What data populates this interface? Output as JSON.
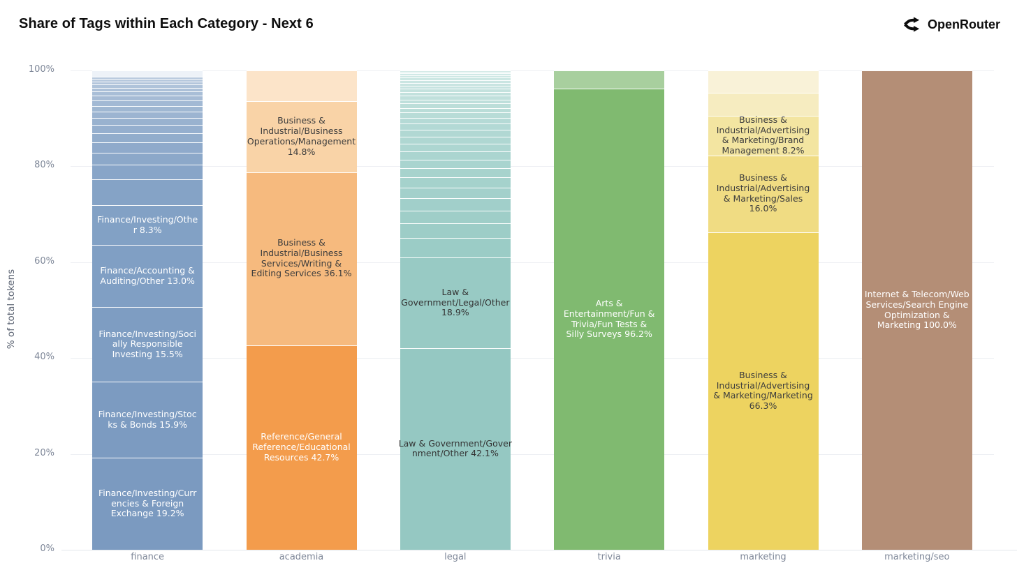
{
  "page": {
    "title": "Share of Tags within Each Category - Next 6",
    "brand": {
      "name": "OpenRouter",
      "icon": "openrouter-logo-icon"
    }
  },
  "chart_data": {
    "type": "bar",
    "stacked": true,
    "title": "Share of Tags within Each Category - Next 6",
    "xlabel": "",
    "ylabel": "% of total tokens",
    "ylim": [
      0,
      100
    ],
    "yticks": [
      "0%",
      "20%",
      "40%",
      "60%",
      "80%",
      "100%"
    ],
    "grid": true,
    "legend": false,
    "categories": [
      "finance",
      "academia",
      "legal",
      "trivia",
      "marketing",
      "marketing/seo"
    ],
    "bars": [
      {
        "category": "finance",
        "segments": [
          {
            "value": 19.2,
            "color": "#7b9ac0",
            "text_color": "#ffffff",
            "label": "Finance/Investing/Currencies & Foreign Exchange 19.2%",
            "label_lines": [
              "Finance/Investing/Curr",
              "encies & Foreign",
              "Exchange 19.2%"
            ]
          },
          {
            "value": 15.9,
            "color": "#7c9bc1",
            "text_color": "#ffffff",
            "label": "Finance/Investing/Stocks & Bonds 15.9%",
            "label_lines": [
              "Finance/Investing/Stoc",
              "ks & Bonds 15.9%"
            ]
          },
          {
            "value": 15.5,
            "color": "#7e9dc2",
            "text_color": "#ffffff",
            "label": "Finance/Investing/Socially Responsible Investing 15.5%",
            "label_lines": [
              "Finance/Investing/Soci",
              "ally Responsible",
              "Investing 15.5%"
            ]
          },
          {
            "value": 13.0,
            "color": "#809fc4",
            "text_color": "#ffffff",
            "label": "Finance/Accounting & Auditing/Other 13.0%",
            "label_lines": [
              "Finance/Accounting &",
              "Auditing/Other 13.0%"
            ]
          },
          {
            "value": 8.3,
            "color": "#82a1c5",
            "text_color": "#ffffff",
            "label": "Finance/Investing/Other 8.3%",
            "label_lines": [
              "Finance/Investing/Othe",
              "r 8.3%"
            ]
          },
          {
            "filler": true,
            "values": [
              5.4,
              3.0,
              2.5,
              2.2,
              1.9,
              1.7,
              1.5,
              1.3,
              1.2,
              1.1,
              1.0,
              0.9,
              0.8,
              0.7,
              0.6,
              0.5,
              0.5
            ],
            "color_from": "#85a3c6",
            "color_to": "#b9cade"
          },
          {
            "value": 1.3,
            "color": "#edf2f8"
          }
        ]
      },
      {
        "category": "academia",
        "segments": [
          {
            "value": 42.7,
            "color": "#f39c4c",
            "text_color": "#ffffff",
            "label": "Reference/General Reference/Educational Resources 42.7%",
            "label_lines": [
              "Reference/General",
              "Reference/Educational",
              "Resources 42.7%"
            ]
          },
          {
            "value": 36.1,
            "color": "#f6ba7e",
            "text_color": "#3d3d3d",
            "label": "Business & Industrial/Business Services/Writing & Editing Services 36.1%",
            "label_lines": [
              "Business &",
              "Industrial/Business",
              "Services/Writing &",
              "Editing Services 36.1%"
            ]
          },
          {
            "value": 14.8,
            "color": "#f9d3a7",
            "text_color": "#3d3d3d",
            "label": "Business & Industrial/Business Operations/Management 14.8%",
            "label_lines": [
              "Business &",
              "Industrial/Business",
              "Operations/Management",
              "14.8%"
            ]
          },
          {
            "value": 6.4,
            "color": "#fce4c9"
          }
        ]
      },
      {
        "category": "legal",
        "segments": [
          {
            "value": 42.1,
            "color": "#95c8c2",
            "text_color": "#333333",
            "label": "Law & Government/Government/Other 42.1%",
            "label_lines": [
              "Law & Government/Gover",
              "nment/Other 42.1%"
            ]
          },
          {
            "value": 18.9,
            "color": "#98cac4",
            "text_color": "#333333",
            "label": "Law & Government/Legal/Other 18.9%",
            "label_lines": [
              "Law &",
              "Government/Legal/Other",
              "18.9%"
            ]
          },
          {
            "filler": true,
            "values": [
              4.1,
              3.0,
              2.7,
              2.5,
              2.3,
              2.1,
              1.9,
              1.8,
              1.7,
              1.6,
              1.5,
              1.4,
              1.3,
              1.2,
              1.1,
              1.0,
              0.9,
              0.85,
              0.8,
              0.75,
              0.7,
              0.65,
              0.6,
              0.55,
              0.5,
              0.45,
              0.4,
              0.35,
              0.3
            ],
            "color_from": "#9bccc6",
            "color_to": "#d4ebe8"
          }
        ]
      },
      {
        "category": "trivia",
        "segments": [
          {
            "value": 96.2,
            "color": "#80ba70",
            "text_color": "#ffffff",
            "label": "Arts & Entertainment/Fun & Trivia/Fun Tests & Silly Surveys 96.2%",
            "label_lines": [
              "Arts &",
              "Entertainment/Fun &",
              "Trivia/Fun Tests &",
              "Silly Surveys 96.2%"
            ]
          },
          {
            "value": 3.8,
            "color": "#a8cf9e"
          }
        ]
      },
      {
        "category": "marketing",
        "segments": [
          {
            "value": 66.3,
            "color": "#edd360",
            "text_color": "#3d3d3d",
            "label": "Business & Industrial/Advertising & Marketing/Marketing 66.3%",
            "label_lines": [
              "Business &",
              "Industrial/Advertising",
              "& Marketing/Marketing",
              "66.3%"
            ]
          },
          {
            "value": 16.0,
            "color": "#f0dc83",
            "text_color": "#3d3d3d",
            "label": "Business & Industrial/Advertising & Marketing/Sales 16.0%",
            "label_lines": [
              "Business &",
              "Industrial/Advertising",
              "& Marketing/Sales",
              "16.0%"
            ]
          },
          {
            "value": 8.2,
            "color": "#f3e5a1",
            "text_color": "#3d3d3d",
            "label": "Business & Industrial/Advertising & Marketing/Brand Management 8.2%",
            "label_lines": [
              "Business &",
              "Industrial/Advertising",
              "& Marketing/Brand",
              "Management 8.2%"
            ]
          },
          {
            "value": 4.9,
            "color": "#f6ecc0"
          },
          {
            "value": 4.6,
            "color": "#f9f2d8"
          }
        ]
      },
      {
        "category": "marketing/seo",
        "segments": [
          {
            "value": 100.0,
            "color": "#b48e76",
            "text_color": "#ffffff",
            "label": "Internet & Telecom/Web Services/Search Engine Optimization & Marketing 100.0%",
            "label_lines": [
              "Internet & Telecom/Web",
              "Services/Search Engine",
              "Optimization &",
              "Marketing 100.0%"
            ]
          }
        ]
      }
    ]
  }
}
